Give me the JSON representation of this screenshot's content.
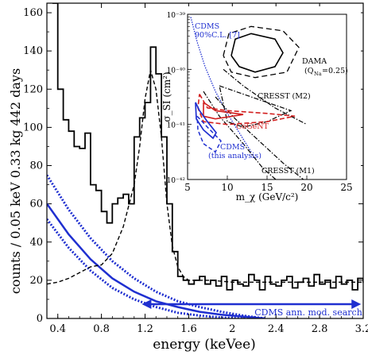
{
  "chart_data": [
    {
      "type": "line",
      "xlabel": "energy (keVee)",
      "ylabel": "counts / 0.05 keV 0.33 kg 442 days",
      "xlim": [
        0.3,
        3.2
      ],
      "ylim": [
        0,
        165
      ],
      "x_ticks": [
        "0.4",
        "0.8",
        "1.2",
        "1.6",
        "2",
        "2.4",
        "2.8",
        "3.2"
      ],
      "y_ticks": [
        "0",
        "20",
        "40",
        "60",
        "80",
        "100",
        "120",
        "140",
        "160"
      ],
      "annotation": "CDMS ann. mod. search",
      "annotation_arrow_range": [
        1.17,
        3.18
      ],
      "histogram": {
        "bin_width": 0.05,
        "bin_start": 0.35,
        "values": [
          165,
          120,
          104,
          98,
          90,
          89,
          97,
          70,
          67,
          56,
          50,
          60,
          63,
          65,
          60,
          95,
          105,
          113,
          142,
          128,
          95,
          60,
          35,
          22,
          20,
          18,
          20,
          22,
          18,
          20,
          17,
          22,
          15,
          20,
          18,
          17,
          23,
          20,
          15,
          22,
          18,
          17,
          20,
          22,
          16,
          19,
          21,
          17,
          23,
          18,
          20,
          16,
          22,
          18,
          20,
          15,
          21,
          19
        ]
      },
      "model_curve": {
        "x": [
          0.3,
          0.4,
          0.5,
          0.6,
          0.7,
          0.8,
          0.9,
          1.0,
          1.1,
          1.15,
          1.2,
          1.25,
          1.3,
          1.35,
          1.4,
          1.45,
          1.5,
          1.55,
          1.6,
          1.8,
          2.0,
          2.4,
          2.8,
          3.2
        ],
        "y": [
          18,
          19,
          21,
          24,
          27,
          28,
          34,
          48,
          70,
          90,
          115,
          130,
          120,
          95,
          60,
          38,
          27,
          22,
          20,
          20,
          19,
          19,
          19,
          19
        ]
      },
      "exclusion_band": {
        "x": [
          0.3,
          0.5,
          0.7,
          0.9,
          1.1,
          1.3,
          1.5,
          1.7,
          1.9,
          2.1,
          2.3
        ],
        "central": [
          60,
          44,
          31,
          21,
          14,
          9,
          6,
          3.5,
          2,
          1,
          0
        ],
        "upper": [
          75,
          57,
          42,
          30,
          21,
          14,
          9,
          6,
          3.5,
          1.5,
          0
        ],
        "lower": [
          52,
          37,
          25,
          16,
          10,
          6,
          3,
          1.5,
          0.5,
          0,
          0
        ]
      },
      "colors": {
        "band": "#1f2fd0",
        "data": "#000000"
      }
    },
    {
      "type": "line",
      "xlabel": "m_χ (GeV/c²)",
      "ylabel": "σ_SI (cm²)",
      "xlim": [
        5,
        25
      ],
      "ylim_log10": [
        -42,
        -39
      ],
      "x_ticks": [
        "5",
        "10",
        "15",
        "20",
        "25"
      ],
      "y_ticks": [
        "10⁻⁴²",
        "10⁻⁴¹",
        "10⁻⁴⁰",
        "10⁻³⁹"
      ],
      "legend_labels": [
        {
          "text": "CDMS",
          "color": "#1f2fd0"
        },
        {
          "text": "90%C.L. [7]",
          "color": "#1f2fd0"
        },
        {
          "text": "DAMA",
          "color": "#000000"
        },
        {
          "text": "(Q",
          "color": "#000000"
        },
        {
          "text": "Na",
          "color": "#000000"
        },
        {
          "text": "=0.25)",
          "color": "#000000"
        },
        {
          "text": "CRESST (M2)",
          "color": "#000000"
        },
        {
          "text": "CoGeNT",
          "color": "#d21f1f"
        },
        {
          "text": "CDMS",
          "color": "#1f2fd0"
        },
        {
          "text": "(this analysis)",
          "color": "#1f2fd0"
        },
        {
          "text": "CRESST (M1)",
          "color": "#000000"
        }
      ],
      "regions": [
        {
          "name": "DAMA",
          "color": "#000000",
          "center": [
            13.5,
            -39.75
          ]
        },
        {
          "name": "CoGeNT",
          "color": "#d21f1f",
          "center": [
            8.0,
            -40.75
          ]
        },
        {
          "name": "CDMS (this analysis)",
          "color": "#1f2fd0",
          "center": [
            6.8,
            -40.95
          ]
        }
      ],
      "colors": {
        "cdms": "#1f2fd0",
        "cogent": "#d21f1f",
        "other": "#000000"
      }
    }
  ]
}
